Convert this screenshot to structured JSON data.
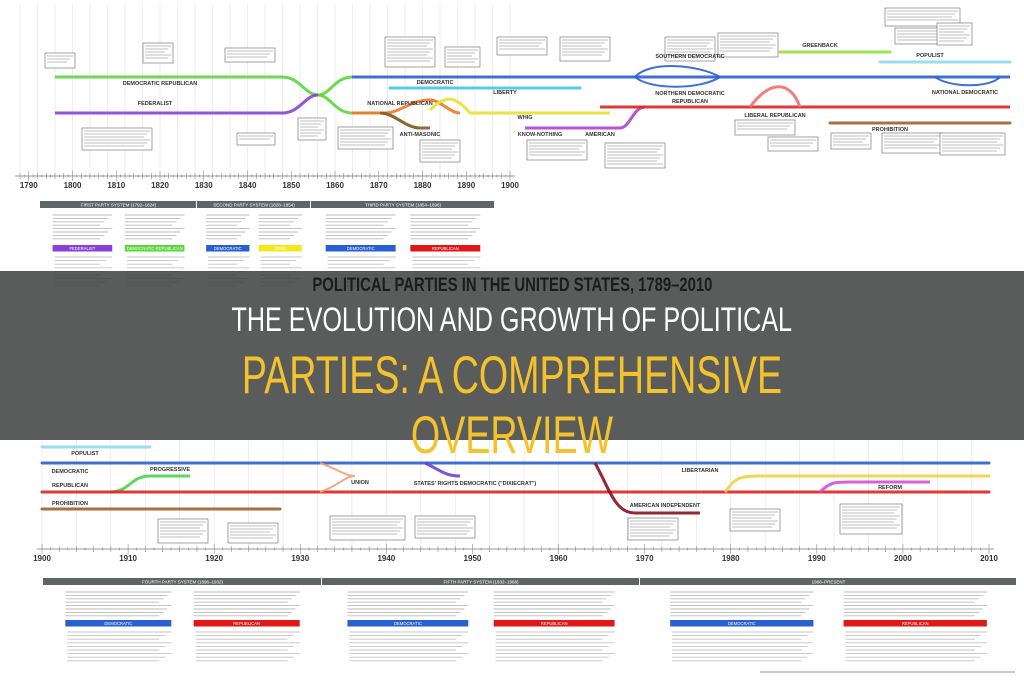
{
  "headline": {
    "line1": "THE EVOLUTION AND GROWTH OF POLITICAL",
    "line2": "PARTIES: A COMPREHENSIVE OVERVIEW",
    "line1_color": "#ffffff",
    "line2_color": "#f4c22b"
  },
  "poster": {
    "title": "POLITICAL PARTIES IN THE UNITED STATES, 1789–2010",
    "top_timeline": {
      "major_years": [
        "1790",
        "1800",
        "1810",
        "1820",
        "1830",
        "1840",
        "1850",
        "1860",
        "1870",
        "1880",
        "1890",
        "1900"
      ],
      "parties": [
        {
          "name": "DEMOCRATIC REPUBLICAN",
          "color": "#5cd63a"
        },
        {
          "name": "FEDERALIST",
          "color": "#8a3fd8"
        },
        {
          "name": "DEMOCRATIC",
          "color": "#2a5fd0"
        },
        {
          "name": "NATIONAL REPUBLICAN",
          "color": "#f07a20"
        },
        {
          "name": "ANTI-MASONIC",
          "color": "#8a5a2a"
        },
        {
          "name": "WHIG",
          "color": "#e8e030"
        },
        {
          "name": "LIBERTY",
          "color": "#40c8e0"
        },
        {
          "name": "KNOW-NOTHING",
          "color": "#b040d0"
        },
        {
          "name": "AMERICAN",
          "color": "#b040d0"
        },
        {
          "name": "REPUBLICAN",
          "color": "#e02020"
        },
        {
          "name": "SOUTHERN DEMOCRATIC",
          "color": "#2a5fd0"
        },
        {
          "name": "NORTHERN DEMOCRATIC",
          "color": "#2a5fd0"
        },
        {
          "name": "LIBERAL REPUBLICAN",
          "color": "#f07070"
        },
        {
          "name": "GREENBACK",
          "color": "#90e040"
        },
        {
          "name": "POPULIST",
          "color": "#8fd8f0"
        },
        {
          "name": "NATIONAL DEMOCRATIC",
          "color": "#2a5fd0"
        },
        {
          "name": "PROHIBITION",
          "color": "#a0622a"
        }
      ]
    },
    "top_sections": [
      {
        "title": "FIRST PARTY SYSTEM (1792–1824)",
        "columns": [
          {
            "label": "FEDERALIST",
            "color": "#8a3fd8"
          },
          {
            "label": "DEMOCRATIC-REPUBLICAN",
            "color": "#5cd63a"
          }
        ]
      },
      {
        "title": "SECOND PARTY SYSTEM (1828–1854)",
        "columns": [
          {
            "label": "DEMOCRATIC",
            "color": "#2a5fd0"
          },
          {
            "label": "WHIG",
            "color": "#f2ea20"
          }
        ]
      },
      {
        "title": "THIRD PARTY SYSTEM (1854–1896)",
        "columns": [
          {
            "label": "DEMOCRATIC",
            "color": "#2a5fd0"
          },
          {
            "label": "REPUBLICAN",
            "color": "#e01818"
          }
        ]
      }
    ],
    "bottom_timeline": {
      "major_years": [
        "1900",
        "1910",
        "1920",
        "1930",
        "1940",
        "1950",
        "1960",
        "1970",
        "1980",
        "1990",
        "2000",
        "2010"
      ],
      "parties": [
        {
          "name": "POPULIST",
          "color": "#8fd8f0"
        },
        {
          "name": "DEMOCRATIC",
          "color": "#2a5fd0"
        },
        {
          "name": "PROGRESSIVE",
          "color": "#50d050"
        },
        {
          "name": "REPUBLICAN",
          "color": "#e02020"
        },
        {
          "name": "PROHIBITION",
          "color": "#a0622a"
        },
        {
          "name": "UNION",
          "color": "#f0a070"
        },
        {
          "name": "STATES' RIGHTS DEMOCRATIC (\"DIXIECRAT\")",
          "color": "#7040d0"
        },
        {
          "name": "AMERICAN INDEPENDENT",
          "color": "#8a1020"
        },
        {
          "name": "LIBERTARIAN",
          "color": "#f0d040"
        },
        {
          "name": "REFORM",
          "color": "#d050d0"
        }
      ]
    },
    "bottom_sections": [
      {
        "title": "FOURTH PARTY SYSTEM (1896–1932)",
        "columns": [
          {
            "label": "DEMOCRATIC",
            "color": "#2a5fd0"
          },
          {
            "label": "REPUBLICAN",
            "color": "#e01818"
          }
        ]
      },
      {
        "title": "FIFTH PARTY SYSTEM (1932–1968)",
        "columns": [
          {
            "label": "DEMOCRATIC",
            "color": "#2a5fd0"
          },
          {
            "label": "REPUBLICAN",
            "color": "#e01818"
          }
        ]
      },
      {
        "title": "1968–PRESENT",
        "columns": [
          {
            "label": "DEMOCRATIC",
            "color": "#2a5fd0"
          },
          {
            "label": "REPUBLICAN",
            "color": "#e01818"
          }
        ]
      }
    ],
    "overlay_color": "#3a3c3c"
  }
}
